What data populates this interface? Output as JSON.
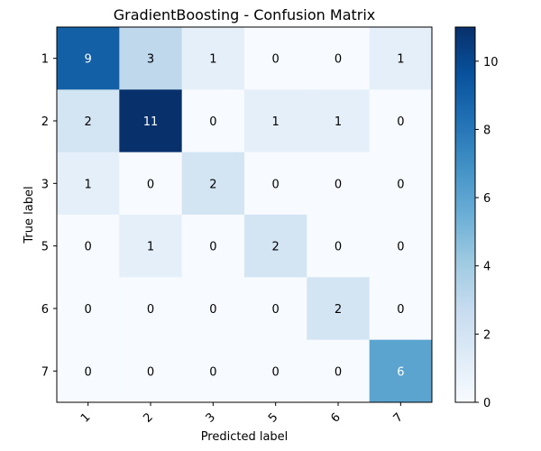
{
  "chart_data": {
    "type": "heatmap",
    "title": "GradientBoosting - Confusion Matrix",
    "xlabel": "Predicted label",
    "ylabel": "True label",
    "row_labels": [
      "1",
      "2",
      "3",
      "5",
      "6",
      "7"
    ],
    "col_labels": [
      "1",
      "2",
      "3",
      "5",
      "6",
      "7"
    ],
    "values": [
      [
        9,
        3,
        1,
        0,
        0,
        1
      ],
      [
        2,
        11,
        0,
        1,
        1,
        0
      ],
      [
        1,
        0,
        2,
        0,
        0,
        0
      ],
      [
        0,
        1,
        0,
        2,
        0,
        0
      ],
      [
        0,
        0,
        0,
        0,
        2,
        0
      ],
      [
        0,
        0,
        0,
        0,
        0,
        6
      ]
    ],
    "colormap": "Blues",
    "color_range": [
      0,
      11
    ],
    "colorbar_ticks": [
      0,
      2,
      4,
      6,
      8,
      10
    ],
    "colorbar_tick_labels": [
      "0",
      "2",
      "4",
      "6",
      "8",
      "10"
    ]
  }
}
